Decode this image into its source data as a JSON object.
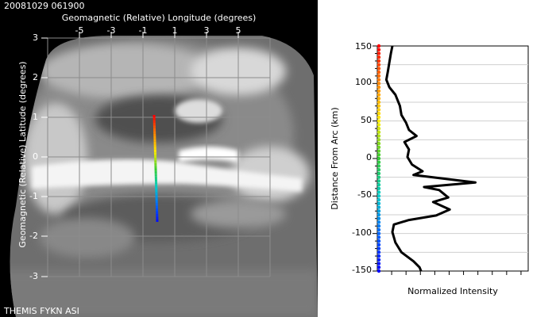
{
  "header": {
    "timestamp": "20081029 061900"
  },
  "footer": {
    "caption": "THEMIS FYKN ASI"
  },
  "image_panel": {
    "top_axis_title": "Geomagnetic (Relative) Longitude (degrees)",
    "left_axis_title": "Geomagnetic (Relative) Latitude (degrees)",
    "x_ticks": [
      "-5",
      "-3",
      "-1",
      "1",
      "3",
      "5"
    ],
    "y_ticks": [
      "3",
      "2",
      "1",
      "0",
      "-1",
      "-2",
      "-3"
    ],
    "gradient_colors": [
      "#ff0000",
      "#ff8800",
      "#ffee00",
      "#33cc33",
      "#00cccc",
      "#0066ff",
      "#0000ff"
    ]
  },
  "chart_data": {
    "type": "line",
    "title": "",
    "xlabel": "Normalized Intensity",
    "ylabel": "Distance From Arc (km)",
    "ylim": [
      -150,
      150
    ],
    "y_ticks": [
      "150",
      "100",
      "50",
      "0",
      "-50",
      "-100",
      "-150"
    ],
    "x_tick_labels_shown": false,
    "grid": true,
    "series": [
      {
        "points": [
          {
            "x": 0.1,
            "y": 150
          },
          {
            "x": 0.09,
            "y": 140
          },
          {
            "x": 0.08,
            "y": 128
          },
          {
            "x": 0.07,
            "y": 116
          },
          {
            "x": 0.06,
            "y": 105
          },
          {
            "x": 0.08,
            "y": 95
          },
          {
            "x": 0.12,
            "y": 85
          },
          {
            "x": 0.15,
            "y": 70
          },
          {
            "x": 0.16,
            "y": 58
          },
          {
            "x": 0.19,
            "y": 48
          },
          {
            "x": 0.21,
            "y": 38
          },
          {
            "x": 0.26,
            "y": 30
          },
          {
            "x": 0.18,
            "y": 22
          },
          {
            "x": 0.21,
            "y": 12
          },
          {
            "x": 0.2,
            "y": 2
          },
          {
            "x": 0.23,
            "y": -8
          },
          {
            "x": 0.3,
            "y": -17
          },
          {
            "x": 0.24,
            "y": -22
          },
          {
            "x": 0.65,
            "y": -32
          },
          {
            "x": 0.31,
            "y": -38
          },
          {
            "x": 0.41,
            "y": -42
          },
          {
            "x": 0.47,
            "y": -52
          },
          {
            "x": 0.37,
            "y": -58
          },
          {
            "x": 0.48,
            "y": -68
          },
          {
            "x": 0.39,
            "y": -76
          },
          {
            "x": 0.21,
            "y": -82
          },
          {
            "x": 0.11,
            "y": -88
          },
          {
            "x": 0.1,
            "y": -98
          },
          {
            "x": 0.12,
            "y": -112
          },
          {
            "x": 0.16,
            "y": -125
          },
          {
            "x": 0.24,
            "y": -137
          },
          {
            "x": 0.28,
            "y": -145
          },
          {
            "x": 0.29,
            "y": -150
          }
        ]
      }
    ]
  }
}
